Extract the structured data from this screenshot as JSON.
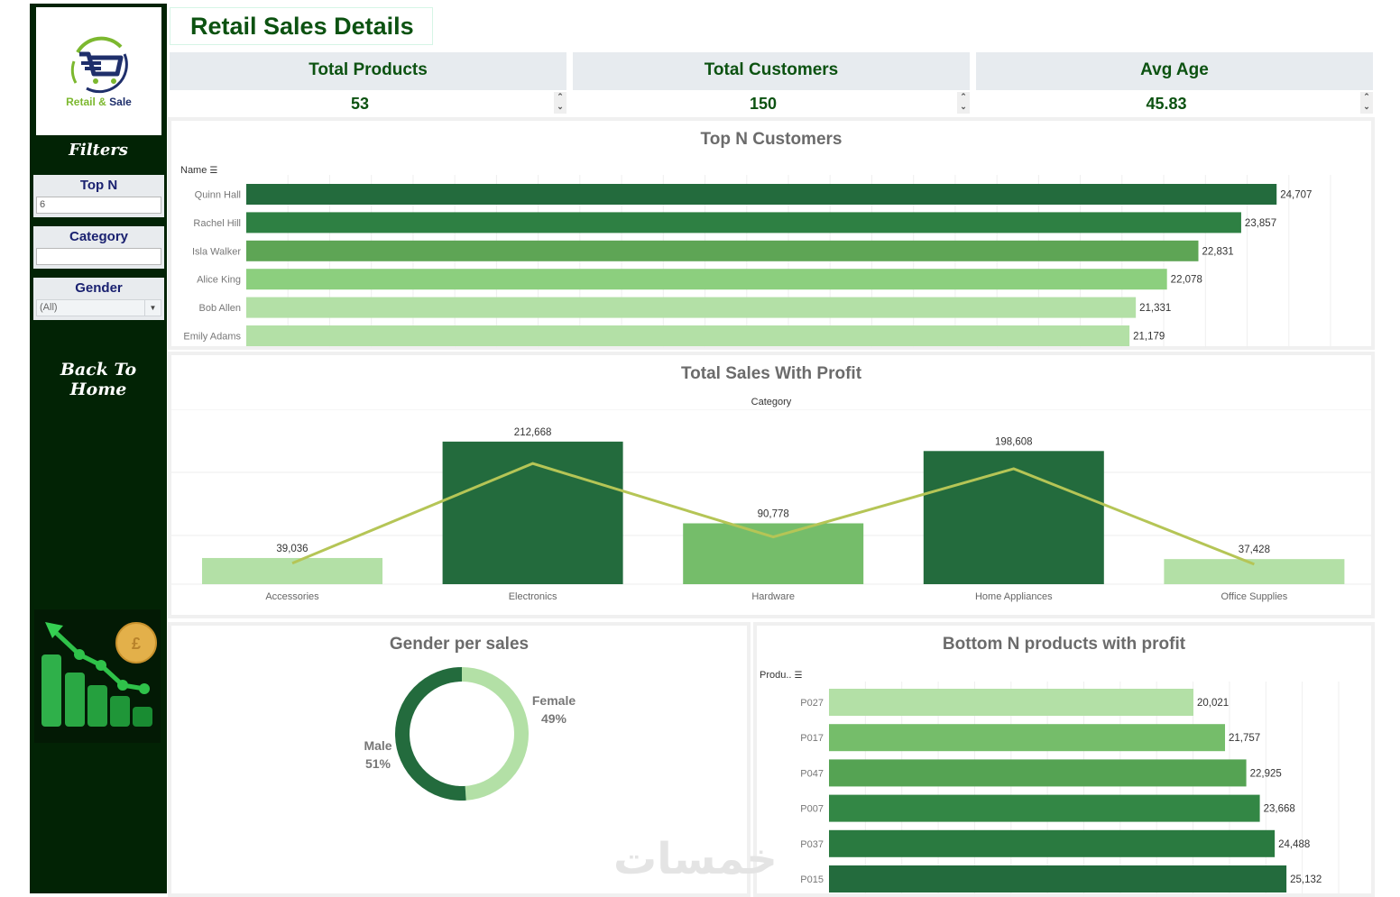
{
  "sidebar": {
    "logo": {
      "word1": "Retail",
      "amp": "&",
      "word2": "Sale"
    },
    "filters_title": "Filters",
    "filters": [
      {
        "label": "Top N",
        "value": "6",
        "type": "input"
      },
      {
        "label": "Category",
        "value": "",
        "type": "input"
      },
      {
        "label": "Gender",
        "value": "(All)",
        "type": "select"
      }
    ],
    "back_home": "Back To Home"
  },
  "header": {
    "title": "Retail Sales Details"
  },
  "kpis": [
    {
      "label": "Total Products",
      "value": "53"
    },
    {
      "label": "Total Customers",
      "value": "150"
    },
    {
      "label": "Avg Age",
      "value": "45.83"
    }
  ],
  "colors": {
    "dark_green": "#236b3d",
    "green2": "#2e8043",
    "green3": "#5ea555",
    "green4": "#8ccf7e",
    "light_green": "#b3e0a6",
    "mid_green": "#75bd6a",
    "profit_line": "#b5c556",
    "title_green": "#0c5211",
    "sidebar_bg": "#022305"
  },
  "watermark": "خمسات",
  "chart_data": [
    {
      "id": "top_customers",
      "type": "bar",
      "orientation": "horizontal",
      "title": "Top N Customers",
      "axis_header": "Name",
      "categories": [
        "Quinn Hall",
        "Rachel Hill",
        "Isla Walker",
        "Alice King",
        "Bob Allen",
        "Emily Adams"
      ],
      "values": [
        24707,
        23857,
        22831,
        22078,
        21331,
        21179
      ],
      "labels": [
        "24,707",
        "23,857",
        "22,831",
        "22,078",
        "21,331",
        "21,179"
      ],
      "xlim": [
        0,
        26000
      ],
      "grid": true
    },
    {
      "id": "sales_profit",
      "type": "bar",
      "title": "Total Sales With Profit",
      "axis_header": "Category",
      "categories": [
        "Accessories",
        "Electronics",
        "Hardware",
        "Home Appliances",
        "Office Supplies"
      ],
      "series": [
        {
          "name": "Sales",
          "values": [
            39036,
            212668,
            90778,
            198608,
            37428
          ],
          "labels": [
            "39,036",
            "212,668",
            "90,778",
            "198,608",
            "37,428"
          ]
        },
        {
          "name": "Profit",
          "type": "line",
          "values": [
            4000,
            23000,
            9000,
            22000,
            3800
          ]
        }
      ],
      "ylim": [
        0,
        240000
      ],
      "grid": true
    },
    {
      "id": "gender_sales",
      "type": "pie",
      "donut": true,
      "title": "Gender per sales",
      "slices": [
        {
          "label": "Female",
          "value": 49,
          "pct": "49%"
        },
        {
          "label": "Male",
          "value": 51,
          "pct": "51%"
        }
      ]
    },
    {
      "id": "bottom_products",
      "type": "bar",
      "orientation": "horizontal",
      "title": "Bottom N products with profit",
      "axis_header": "Produ..",
      "categories": [
        "P027",
        "P017",
        "P047",
        "P007",
        "P037",
        "P015"
      ],
      "values": [
        20021,
        21757,
        22925,
        23668,
        24488,
        25132
      ],
      "labels": [
        "20,021",
        "21,757",
        "22,925",
        "23,668",
        "24,488",
        "25,132"
      ],
      "xlim": [
        0,
        28000
      ],
      "grid": true
    }
  ]
}
